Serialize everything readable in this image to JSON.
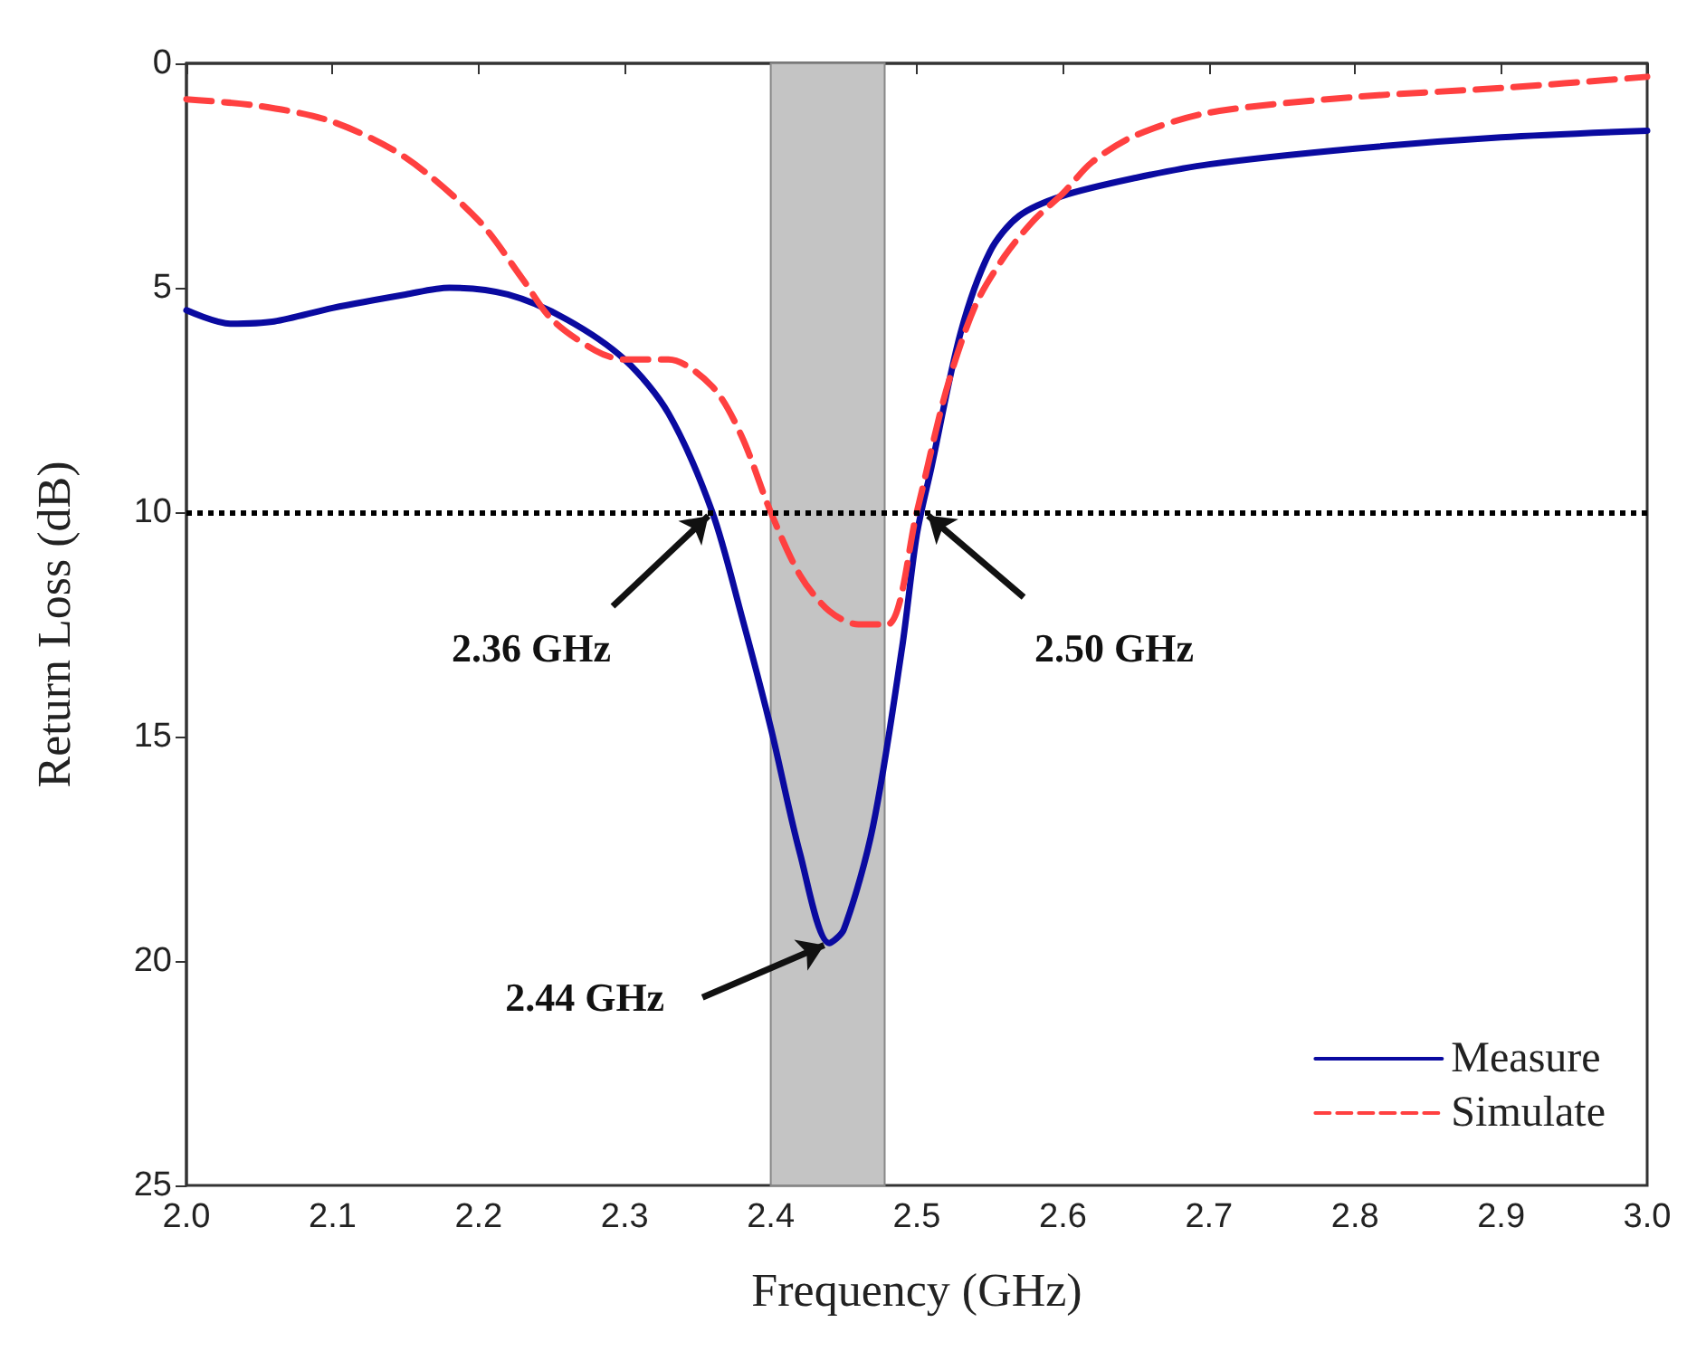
{
  "chart_data": {
    "type": "line",
    "xlabel": "Frequency (GHz)",
    "ylabel": "Return Loss (dB)",
    "xlim": [
      2.0,
      3.0
    ],
    "xticks": [
      {
        "value": 2.0,
        "label": "2.0"
      },
      {
        "value": 2.1,
        "label": "2.1"
      },
      {
        "value": 2.2,
        "label": "2.2"
      },
      {
        "value": 2.3,
        "label": "2.3"
      },
      {
        "value": 2.4,
        "label": "2.4"
      },
      {
        "value": 2.5,
        "label": "2.5"
      },
      {
        "value": 2.6,
        "label": "2.6"
      },
      {
        "value": 2.7,
        "label": "2.7"
      },
      {
        "value": 2.8,
        "label": "2.8"
      },
      {
        "value": 2.9,
        "label": "2.9"
      },
      {
        "value": 3.0,
        "label": "3.0"
      }
    ],
    "ylim": [
      25,
      0
    ],
    "yticks": [
      0,
      5,
      10,
      15,
      20,
      25
    ],
    "series": [
      {
        "name": "Measure",
        "color": "#0a0aa0",
        "line_style": "solid",
        "x": [
          2.0,
          2.03,
          2.06,
          2.1,
          2.15,
          2.18,
          2.22,
          2.26,
          2.3,
          2.33,
          2.36,
          2.38,
          2.4,
          2.42,
          2.44,
          2.45,
          2.47,
          2.49,
          2.5,
          2.51,
          2.53,
          2.55,
          2.57,
          2.6,
          2.65,
          2.7,
          2.8,
          2.9,
          3.0
        ],
        "values": [
          5.5,
          5.8,
          5.75,
          5.45,
          5.15,
          5.0,
          5.15,
          5.7,
          6.6,
          7.8,
          10.0,
          12.3,
          14.8,
          17.6,
          19.6,
          19.3,
          17.0,
          13.0,
          10.5,
          9.0,
          6.0,
          4.2,
          3.4,
          2.95,
          2.55,
          2.25,
          1.9,
          1.65,
          1.5
        ]
      },
      {
        "name": "Simulate",
        "color": "#ff4040",
        "line_style": "dashed",
        "x": [
          2.0,
          2.05,
          2.1,
          2.15,
          2.2,
          2.23,
          2.25,
          2.28,
          2.3,
          2.33,
          2.36,
          2.38,
          2.4,
          2.42,
          2.44,
          2.46,
          2.48,
          2.5,
          2.52,
          2.54,
          2.56,
          2.58,
          2.6,
          2.62,
          2.65,
          2.7,
          2.8,
          2.9,
          3.0
        ],
        "values": [
          0.8,
          0.95,
          1.3,
          2.1,
          3.5,
          4.8,
          5.7,
          6.4,
          6.6,
          6.6,
          7.2,
          8.3,
          10.0,
          11.4,
          12.2,
          12.5,
          12.5,
          10.0,
          7.3,
          5.4,
          4.3,
          3.5,
          2.9,
          2.2,
          1.6,
          1.1,
          0.75,
          0.55,
          0.3
        ]
      }
    ],
    "ref_lines": [
      {
        "axis": "y",
        "value": 10,
        "color": "#000000",
        "line_style": "dotted"
      }
    ],
    "bands": [
      {
        "axis": "x",
        "from": 2.4,
        "to": 2.478,
        "color": "#c4c4c4"
      }
    ],
    "annotations": [
      {
        "text": "2.36 GHz",
        "x": 2.36,
        "y": 10
      },
      {
        "text": "2.50 GHz",
        "x": 2.505,
        "y": 10
      },
      {
        "text": "2.44 GHz",
        "x": 2.44,
        "y": 19.6
      }
    ],
    "legend": "bottom right",
    "grid": false,
    "marker": "none"
  }
}
